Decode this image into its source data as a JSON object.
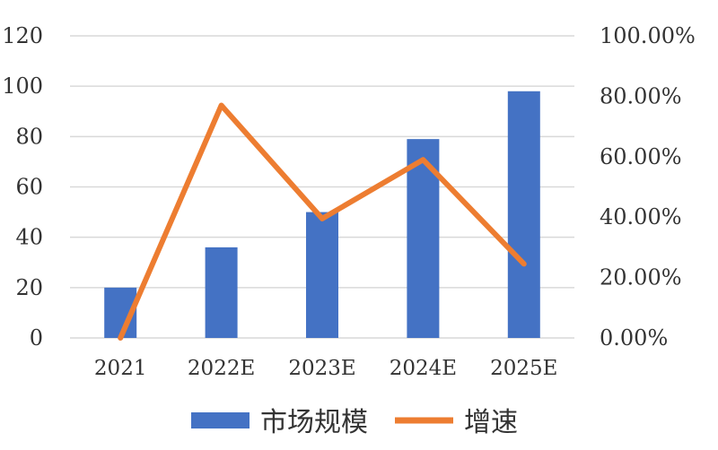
{
  "chart_data": {
    "type": "bar",
    "categories": [
      "2021",
      "2022E",
      "2023E",
      "2024E",
      "2025E"
    ],
    "series": [
      {
        "name": "市场规模",
        "type": "bar",
        "axis": "left",
        "color": "#4472C4",
        "values": [
          20,
          36,
          50,
          79,
          98
        ]
      },
      {
        "name": "增速",
        "type": "line",
        "axis": "right",
        "color": "#ED7D31",
        "values": [
          0.0,
          77.0,
          39.5,
          59.0,
          24.5
        ]
      }
    ],
    "title": "",
    "xlabel": "",
    "ylabel": "",
    "ylim": [
      0,
      120
    ],
    "yticks": [
      "0",
      "20",
      "40",
      "60",
      "80",
      "100",
      "120"
    ],
    "y2lim": [
      0,
      100
    ],
    "y2ticks": [
      "0.00%",
      "20.00%",
      "40.00%",
      "60.00%",
      "80.00%",
      "100.00%"
    ],
    "grid": true,
    "legend_position": "bottom"
  }
}
